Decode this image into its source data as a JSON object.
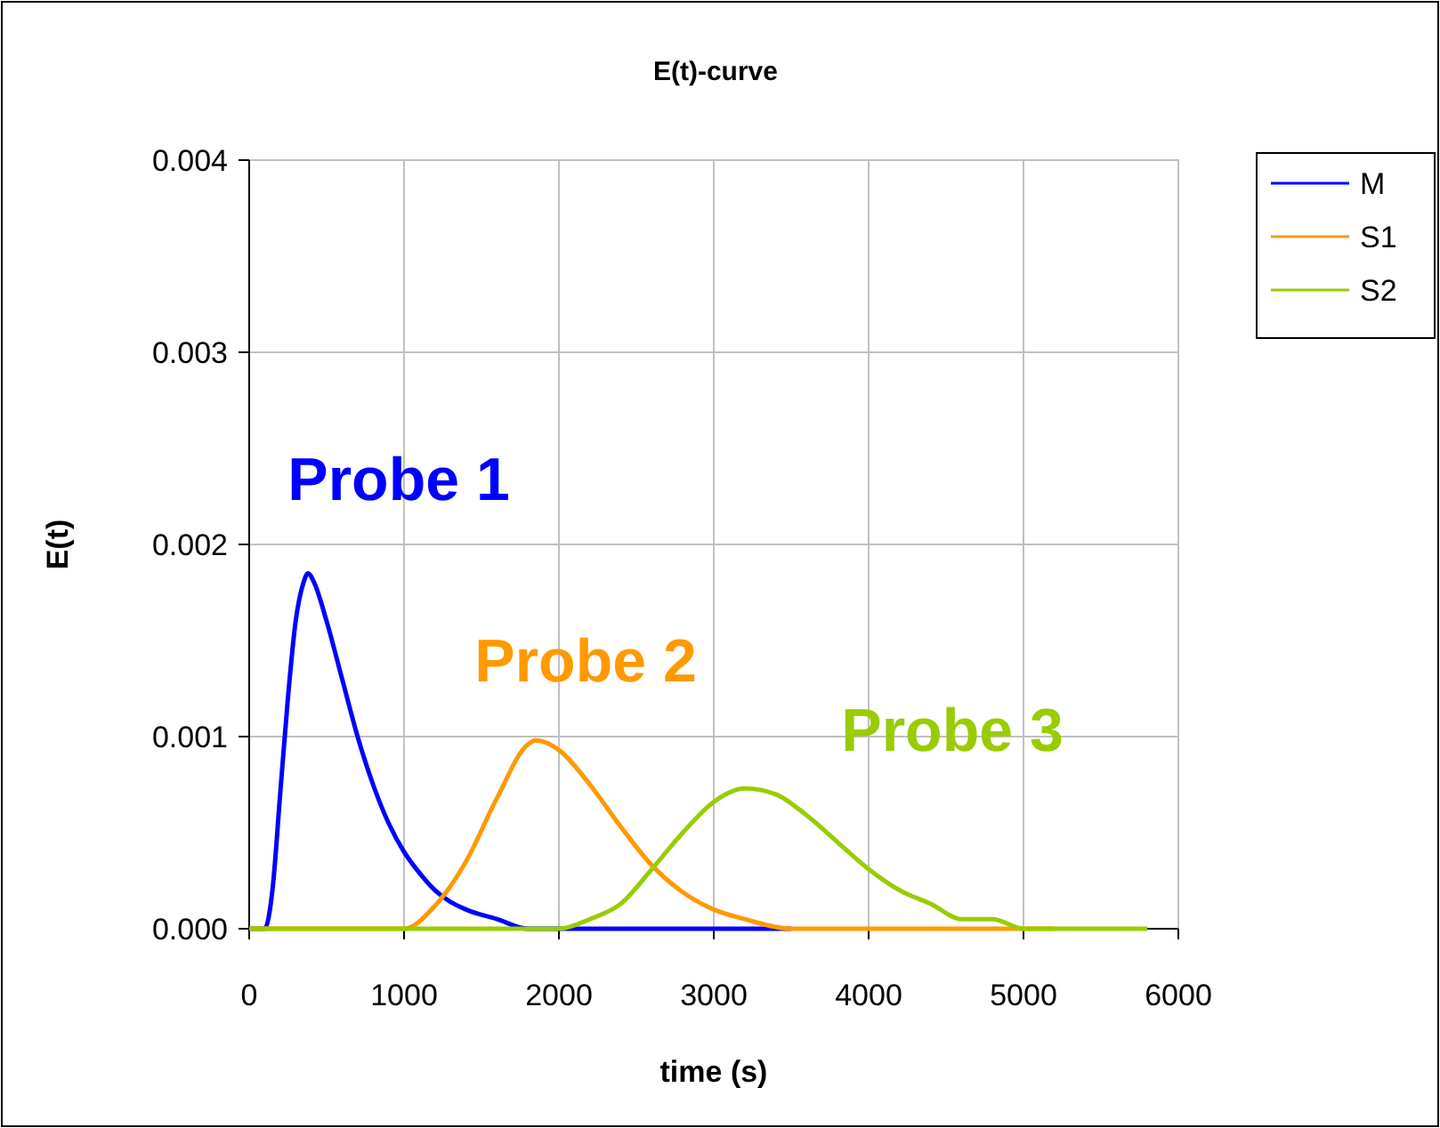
{
  "chart_data": {
    "type": "line",
    "title": "E(t)-curve",
    "xlabel": "time (s)",
    "ylabel": "E(t)",
    "xlim": [
      0,
      6000
    ],
    "xticks": [
      0,
      1000,
      2000,
      3000,
      4000,
      5000,
      6000
    ],
    "ylim": [
      0,
      0.004
    ],
    "yticks": [
      {
        "value": 0,
        "label": "0.000"
      },
      {
        "value": 0.001,
        "label": "0.001"
      },
      {
        "value": 0.002,
        "label": "0.002"
      },
      {
        "value": 0.003,
        "label": "0.003"
      },
      {
        "value": 0.004,
        "label": "0.004"
      }
    ],
    "grid": true,
    "legend": "top right",
    "marker": "none",
    "line_style": "solid",
    "annotations": [
      "Probe 1",
      "Probe 2",
      "Probe 3"
    ],
    "series": [
      {
        "name": "M",
        "color": "#0000ff",
        "x": [
          0,
          100,
          150,
          200,
          250,
          300,
          350,
          380,
          420,
          500,
          600,
          700,
          800,
          900,
          1000,
          1100,
          1200,
          1300,
          1400,
          1600,
          1800,
          2000,
          2500,
          3500
        ],
        "values": [
          0,
          0,
          0.0002,
          0.0007,
          0.0012,
          0.0016,
          0.0018,
          0.00185,
          0.0018,
          0.0016,
          0.0013,
          0.001,
          0.00075,
          0.00055,
          0.0004,
          0.00029,
          0.0002,
          0.00014,
          0.0001,
          5e-05,
          0,
          0,
          0,
          0
        ]
      },
      {
        "name": "S1",
        "color": "#ff9900",
        "x": [
          0,
          800,
          1000,
          1200,
          1400,
          1600,
          1800,
          1850,
          2000,
          2200,
          2400,
          2600,
          2800,
          3000,
          3200,
          3500,
          4000,
          5200
        ],
        "values": [
          0,
          0,
          0,
          0.00012,
          0.00035,
          0.00068,
          0.00096,
          0.00098,
          0.00093,
          0.00075,
          0.00053,
          0.00033,
          0.00019,
          0.0001,
          5e-05,
          0,
          0,
          0
        ]
      },
      {
        "name": "S2",
        "color": "#99cc00",
        "x": [
          0,
          1800,
          2000,
          2200,
          2400,
          2600,
          2800,
          3000,
          3200,
          3400,
          3600,
          3800,
          4000,
          4200,
          4400,
          4600,
          4800,
          5000,
          5400,
          5800
        ],
        "values": [
          0,
          0,
          0,
          5e-05,
          0.00013,
          0.00031,
          0.0005,
          0.00066,
          0.00073,
          0.0007,
          0.00059,
          0.00045,
          0.00031,
          0.0002,
          0.00013,
          5e-05,
          5e-05,
          0,
          0,
          0
        ]
      }
    ]
  }
}
